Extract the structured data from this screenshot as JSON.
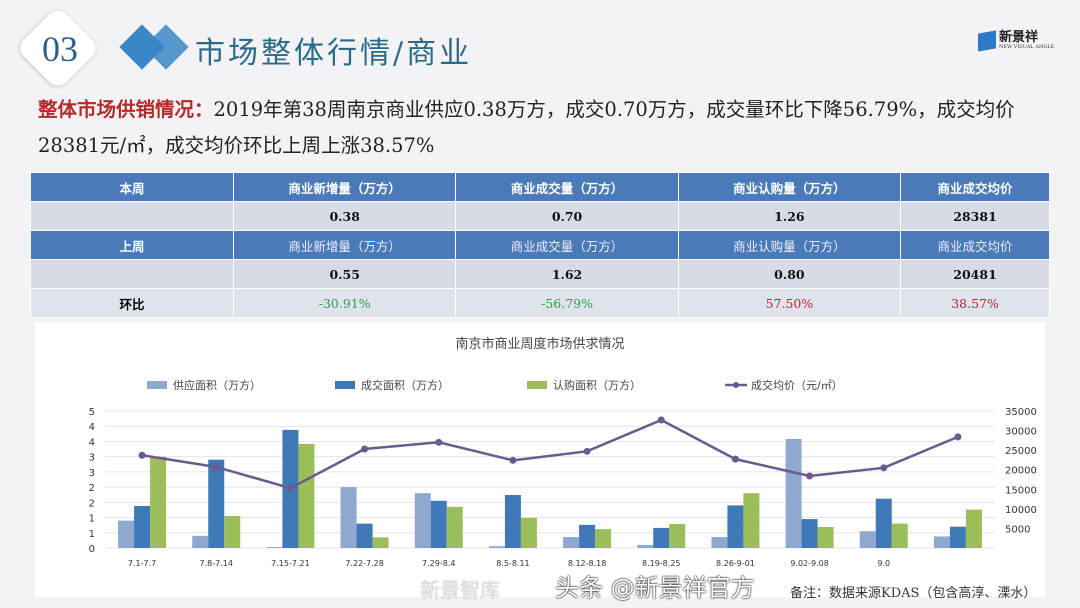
{
  "header": {
    "section_number": "03",
    "title": "市场整体行情/商业",
    "logo_text": "新景祥",
    "logo_subtext": "NEW VISUAL ANGLE"
  },
  "summary": {
    "lead": "整体市场供销情况：",
    "text": "2019年第38周南京商业供应0.38万方，成交0.70万方，成交量环比下降56.79%，成交均价28381元/㎡，成交均价环比上周上涨38.57%"
  },
  "table": {
    "this_week_label": "本周",
    "last_week_label": "上周",
    "ratio_label": "环比",
    "columns": [
      "商业新增量（万方）",
      "商业成交量（万方）",
      "商业认购量（万方）",
      "商业成交均价"
    ],
    "this_week": [
      "0.38",
      "0.70",
      "1.26",
      "28381"
    ],
    "last_week": [
      "0.55",
      "1.62",
      "0.80",
      "20481"
    ],
    "ratio": [
      "-30.91%",
      "-56.79%",
      "57.50%",
      "38.57%"
    ],
    "colors": {
      "header": "#4a7ab8",
      "negative": "#2aa04a",
      "positive": "#c0262d"
    }
  },
  "chart_data": {
    "type": "bar+line",
    "title": "南京市商业周度市场供求情况",
    "categories": [
      "7.1-7.7",
      "7.8-7.14",
      "7.15-7.21",
      "7.22-7.28",
      "7.29-8.4",
      "8.5-8.11",
      "8.12-8.18",
      "8.19-8.25",
      "8.26-9-01",
      "9.02-9.08",
      "9.0",
      ""
    ],
    "left_axis": {
      "range": [
        0,
        4.5
      ],
      "ticks": [
        "0",
        "1",
        "1",
        "2",
        "2",
        "3",
        "3",
        "4",
        "4",
        "5"
      ]
    },
    "right_axis": {
      "range": [
        0,
        35000
      ],
      "ticks": [
        "5000",
        "10000",
        "15000",
        "20000",
        "25000",
        "30000",
        "35000"
      ]
    },
    "grid": true,
    "legend": "top",
    "series": [
      {
        "name": "供应面积（万方）",
        "type": "bar",
        "axis": "left",
        "color": "#8fa8cf",
        "values": [
          0.9,
          0.4,
          0.03,
          2.0,
          1.8,
          0.06,
          0.36,
          0.1,
          0.36,
          3.58,
          0.55,
          0.38
        ]
      },
      {
        "name": "成交面积（万方）",
        "type": "bar",
        "axis": "left",
        "color": "#3f79b8",
        "values": [
          1.38,
          2.9,
          3.88,
          0.8,
          1.55,
          1.74,
          0.76,
          0.66,
          1.4,
          0.95,
          1.62,
          0.7
        ]
      },
      {
        "name": "认购面积（万方）",
        "type": "bar",
        "axis": "left",
        "color": "#9bbd5a",
        "values": [
          3.0,
          1.05,
          3.42,
          0.35,
          1.35,
          0.99,
          0.62,
          0.79,
          1.8,
          0.69,
          0.8,
          1.26
        ]
      },
      {
        "name": "成交均价（元/㎡）",
        "type": "line",
        "axis": "right",
        "color": "#6a5a8e",
        "values": [
          23700,
          20700,
          15300,
          25300,
          27000,
          22400,
          24700,
          32700,
          22700,
          18400,
          20481,
          28381
        ]
      }
    ]
  },
  "footer": {
    "note": "备注：数据来源KDAS（包含高淳、溧水）",
    "watermark": "头条 @新景祥官方",
    "watermark2": "新景智库"
  }
}
